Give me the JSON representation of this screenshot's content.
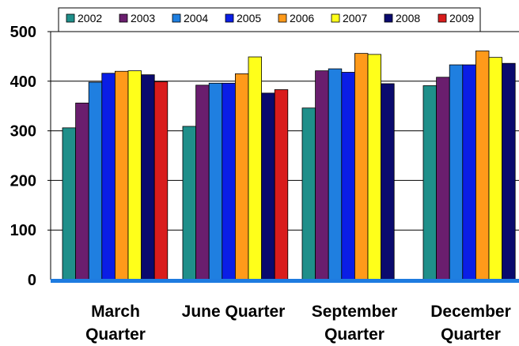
{
  "chart_data": {
    "type": "bar",
    "categories": [
      [
        "March",
        "Quarter"
      ],
      [
        "June Quarter"
      ],
      [
        "September",
        "Quarter"
      ],
      [
        "December",
        "Quarter"
      ]
    ],
    "series": [
      {
        "name": "2002",
        "color": "#1f8f8a",
        "values": [
          306,
          309,
          346,
          391
        ]
      },
      {
        "name": "2003",
        "color": "#6a1e6e",
        "values": [
          356,
          392,
          421,
          408
        ]
      },
      {
        "name": "2004",
        "color": "#1f7fe0",
        "values": [
          398,
          396,
          425,
          433
        ]
      },
      {
        "name": "2005",
        "color": "#0a1ee6",
        "values": [
          416,
          396,
          418,
          433
        ]
      },
      {
        "name": "2006",
        "color": "#ff9a1a",
        "values": [
          420,
          415,
          456,
          461
        ]
      },
      {
        "name": "2007",
        "color": "#ffff1a",
        "values": [
          421,
          449,
          454,
          448
        ]
      },
      {
        "name": "2008",
        "color": "#0a0a6e",
        "values": [
          413,
          376,
          395,
          436
        ]
      },
      {
        "name": "2009",
        "color": "#d91c1c",
        "values": [
          399,
          383,
          null,
          null
        ]
      }
    ],
    "ylim": [
      0,
      500
    ],
    "yticks": [
      0,
      100,
      200,
      300,
      400,
      500
    ],
    "grid": true,
    "legend_position": "top",
    "xlabel": "",
    "ylabel": "",
    "title": ""
  }
}
